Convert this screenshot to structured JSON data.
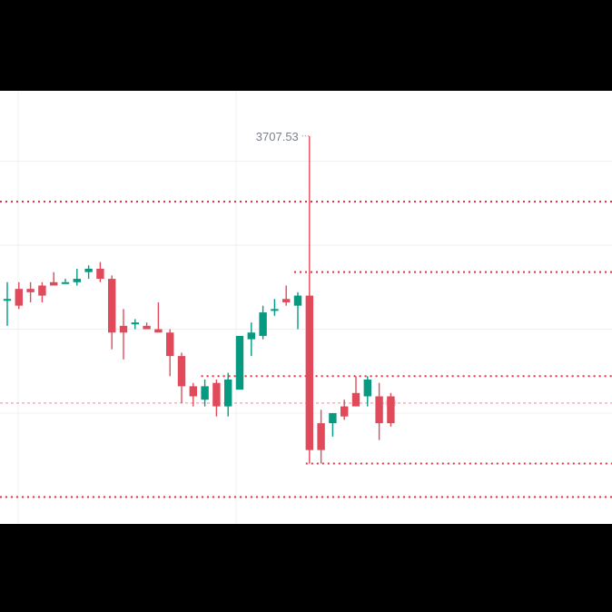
{
  "chart_data": {
    "type": "candlestick",
    "grid": true,
    "colors": {
      "up": "#089981",
      "down": "#e04a5a",
      "level_line": "#e0324a",
      "price_line": "#e88f9a",
      "grid": "#eef0f3",
      "annotation": "#7a7f89"
    },
    "annotations": {
      "high_label": "3707.53"
    },
    "candles": [
      {
        "o": 3659,
        "h": 3664,
        "l": 3651,
        "c": 3659
      },
      {
        "o": 3662,
        "h": 3664,
        "l": 3656,
        "c": 3657
      },
      {
        "o": 3662,
        "h": 3664,
        "l": 3658,
        "c": 3661
      },
      {
        "o": 3663,
        "h": 3664,
        "l": 3658,
        "c": 3660
      },
      {
        "o": 3664,
        "h": 3667,
        "l": 3663,
        "c": 3663
      },
      {
        "o": 3664,
        "h": 3665,
        "l": 3664,
        "c": 3664
      },
      {
        "o": 3664,
        "h": 3668,
        "l": 3663,
        "c": 3665
      },
      {
        "o": 3667,
        "h": 3669,
        "l": 3665,
        "c": 3668
      },
      {
        "o": 3668,
        "h": 3670,
        "l": 3664,
        "c": 3665
      },
      {
        "o": 3665,
        "h": 3666,
        "l": 3644,
        "c": 3649
      },
      {
        "o": 3651,
        "h": 3656,
        "l": 3641,
        "c": 3649
      },
      {
        "o": 3652,
        "h": 3653,
        "l": 3650,
        "c": 3652
      },
      {
        "o": 3651,
        "h": 3652,
        "l": 3650,
        "c": 3650
      },
      {
        "o": 3650,
        "h": 3658,
        "l": 3649,
        "c": 3649
      },
      {
        "o": 3649,
        "h": 3650,
        "l": 3636,
        "c": 3642
      },
      {
        "o": 3642,
        "h": 3643,
        "l": 3628,
        "c": 3633
      },
      {
        "o": 3633,
        "h": 3634,
        "l": 3627,
        "c": 3630
      },
      {
        "o": 3629,
        "h": 3635,
        "l": 3627,
        "c": 3633
      },
      {
        "o": 3634,
        "h": 3635,
        "l": 3624,
        "c": 3627
      },
      {
        "o": 3627,
        "h": 3637,
        "l": 3624,
        "c": 3635
      },
      {
        "o": 3632,
        "h": 3648,
        "l": 3632,
        "c": 3648
      },
      {
        "o": 3647,
        "h": 3652,
        "l": 3642,
        "c": 3649
      },
      {
        "o": 3648,
        "h": 3657,
        "l": 3647,
        "c": 3655
      },
      {
        "o": 3656,
        "h": 3659,
        "l": 3654,
        "c": 3656
      },
      {
        "o": 3659,
        "h": 3663,
        "l": 3657,
        "c": 3658
      },
      {
        "o": 3657,
        "h": 3661,
        "l": 3650,
        "c": 3660
      },
      {
        "o": 3660,
        "h": 3707.53,
        "l": 3610,
        "c": 3614
      },
      {
        "o": 3622,
        "h": 3626,
        "l": 3610,
        "c": 3614
      },
      {
        "o": 3622,
        "h": 3625,
        "l": 3618,
        "c": 3625
      },
      {
        "o": 3627,
        "h": 3629,
        "l": 3623,
        "c": 3624
      },
      {
        "o": 3631,
        "h": 3636,
        "l": 3628,
        "c": 3627
      },
      {
        "o": 3630,
        "h": 3636,
        "l": 3627,
        "c": 3635
      },
      {
        "o": 3630,
        "h": 3634,
        "l": 3617,
        "c": 3622
      },
      {
        "o": 3630,
        "h": 3631,
        "l": 3621,
        "c": 3622
      }
    ],
    "levels": [
      {
        "price": 3688,
        "start_index": 0
      },
      {
        "price": 3667,
        "start_index": 25
      },
      {
        "price": 3636,
        "start_index": 17
      },
      {
        "price": 3610,
        "start_index": 26
      },
      {
        "price": 3600,
        "start_index": 0
      }
    ],
    "current_price": 3628,
    "ylim": [
      3592,
      3721
    ]
  }
}
